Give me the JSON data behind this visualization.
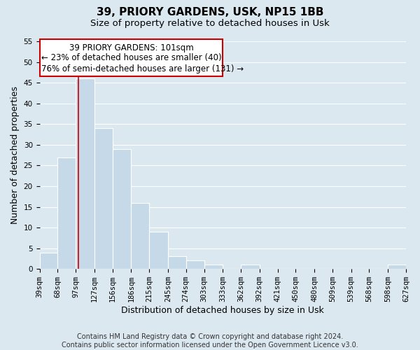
{
  "title": "39, PRIORY GARDENS, USK, NP15 1BB",
  "subtitle": "Size of property relative to detached houses in Usk",
  "xlabel": "Distribution of detached houses by size in Usk",
  "ylabel": "Number of detached properties",
  "bar_color": "#c5d9e8",
  "bar_edge_color": "#ffffff",
  "grid_color": "#ffffff",
  "bg_color": "#dce8f0",
  "annotation_box_facecolor": "#ffffff",
  "annotation_line_color": "#cc0000",
  "bins": [
    39,
    68,
    97,
    127,
    156,
    186,
    215,
    245,
    274,
    303,
    333,
    362,
    392,
    421,
    450,
    480,
    509,
    539,
    568,
    598,
    627
  ],
  "counts": [
    4,
    27,
    46,
    34,
    29,
    16,
    9,
    3,
    2,
    1,
    0,
    1,
    0,
    0,
    0,
    0,
    0,
    0,
    0,
    1
  ],
  "ylim": [
    0,
    55
  ],
  "yticks": [
    0,
    5,
    10,
    15,
    20,
    25,
    30,
    35,
    40,
    45,
    50,
    55
  ],
  "property_size": 101,
  "property_label": "39 PRIORY GARDENS: 101sqm",
  "annotation_line1": "← 23% of detached houses are smaller (40)",
  "annotation_line2": "76% of semi-detached houses are larger (131) →",
  "footer1": "Contains HM Land Registry data © Crown copyright and database right 2024.",
  "footer2": "Contains public sector information licensed under the Open Government Licence v3.0.",
  "title_fontsize": 11,
  "subtitle_fontsize": 9.5,
  "tick_label_fontsize": 7.5,
  "axis_label_fontsize": 9,
  "footer_fontsize": 7,
  "annotation_fontsize": 8.5
}
